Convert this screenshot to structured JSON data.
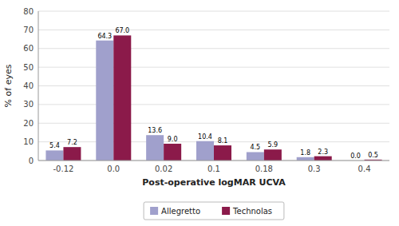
{
  "chart_data": {
    "type": "bar",
    "categories": [
      "-0.12",
      "0.0",
      "0.02",
      "0.1",
      "0.18",
      "0.3",
      "0.4"
    ],
    "series": [
      {
        "name": "Allegretto",
        "color": "#a0a0cc",
        "values": [
          5.4,
          64.3,
          13.6,
          10.4,
          4.5,
          1.8,
          0.0
        ],
        "value_labels": [
          "5.4",
          "64.3",
          "13.6",
          "10.4",
          "4.5",
          "1.8",
          "0.0"
        ]
      },
      {
        "name": "Technolas",
        "color": "#8b1a4a",
        "values": [
          7.2,
          67.0,
          9.0,
          8.1,
          5.9,
          2.3,
          0.5
        ],
        "value_labels": [
          "7.2",
          "67.0",
          "9.0",
          "8.1",
          "5.9",
          "2.3",
          "0.5"
        ]
      }
    ],
    "xlabel": "Post-operative logMAR UCVA",
    "ylabel": "% of eyes",
    "ylim": [
      0,
      80
    ],
    "yticks": [
      0,
      10,
      20,
      30,
      40,
      50,
      60,
      70,
      80
    ],
    "grid": true,
    "legend": "bottom",
    "data_labels": true
  }
}
